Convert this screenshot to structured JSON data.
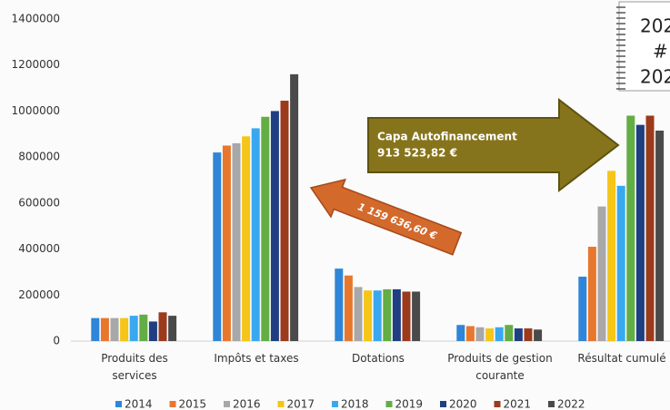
{
  "chart_data": {
    "type": "bar",
    "categories": [
      "Produits des services",
      "Impôts et taxes",
      "Dotations",
      "Produits de gestion courante",
      "Résultat cumulé"
    ],
    "series": [
      {
        "name": "2014",
        "color": "#2f86d8",
        "values": [
          100000,
          820000,
          315000,
          70000,
          280000
        ]
      },
      {
        "name": "2015",
        "color": "#e8772e",
        "values": [
          100000,
          850000,
          285000,
          65000,
          410000
        ]
      },
      {
        "name": "2016",
        "color": "#a8a8a8",
        "values": [
          100000,
          860000,
          235000,
          60000,
          585000
        ]
      },
      {
        "name": "2017",
        "color": "#f5c518",
        "values": [
          100000,
          890000,
          220000,
          55000,
          740000
        ]
      },
      {
        "name": "2018",
        "color": "#3aa8ef",
        "values": [
          110000,
          925000,
          220000,
          60000,
          675000
        ]
      },
      {
        "name": "2019",
        "color": "#63ad45",
        "values": [
          115000,
          975000,
          225000,
          70000,
          980000
        ]
      },
      {
        "name": "2020",
        "color": "#1f3f82",
        "values": [
          85000,
          1000000,
          225000,
          55000,
          940000
        ]
      },
      {
        "name": "2021",
        "color": "#9c3a1c",
        "values": [
          125000,
          1045000,
          215000,
          55000,
          980000
        ]
      },
      {
        "name": "2022",
        "color": "#4a4a4a",
        "values": [
          110000,
          1160000,
          215000,
          50000,
          915000
        ]
      }
    ],
    "ylim": [
      0,
      1400000
    ],
    "yticks": [
      0,
      200000,
      400000,
      600000,
      800000,
      1000000,
      1200000,
      1400000
    ],
    "grid": false,
    "legend": "bottom",
    "annotations": {
      "capa_label": "Capa Autofinancement",
      "capa_value": "913 523,82 €",
      "arrow_value": "1 159 636,60 €",
      "note_lines": [
        "202",
        "#",
        "202"
      ]
    }
  }
}
